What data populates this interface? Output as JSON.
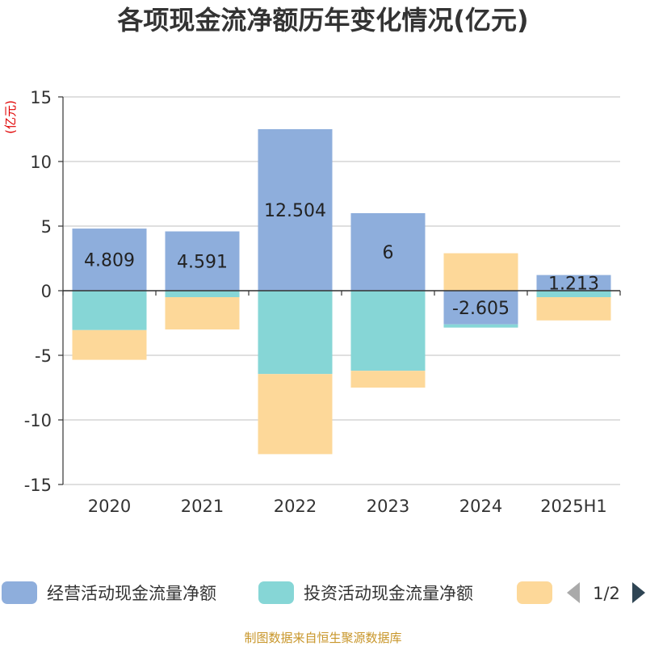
{
  "chart_data": {
    "type": "bar",
    "stacked": true,
    "title": "各项现金流净额历年变化情况(亿元)",
    "unit_label": "(亿元)",
    "categories": [
      "2020",
      "2021",
      "2022",
      "2023",
      "2024",
      "2025H1"
    ],
    "ylim": [
      -15,
      15
    ],
    "yticks": [
      15,
      10,
      5,
      0,
      -5,
      -10,
      -15
    ],
    "grid": true,
    "series": [
      {
        "name": "经营活动现金流量净额",
        "color": "#8eaedc",
        "values": [
          4.809,
          4.591,
          12.504,
          6,
          -2.605,
          1.213
        ],
        "show_labels": true
      },
      {
        "name": "投资活动现金流量净额",
        "color": "#86d6d6",
        "values": [
          -3.05,
          -0.5,
          -6.45,
          -6.2,
          -0.25,
          -0.5
        ],
        "show_labels": false
      },
      {
        "name": "",
        "color": "#fdd899",
        "values": [
          -2.3,
          -2.5,
          -6.2,
          -1.3,
          2.9,
          -1.8
        ],
        "show_labels": false
      }
    ],
    "data_labels": [
      "4.809",
      "4.591",
      "12.504",
      "6",
      "-2.605",
      "1.213"
    ]
  },
  "legend": {
    "page": "1/2",
    "placement": "bottom"
  },
  "source": "制图数据来自恒生聚源数据库"
}
